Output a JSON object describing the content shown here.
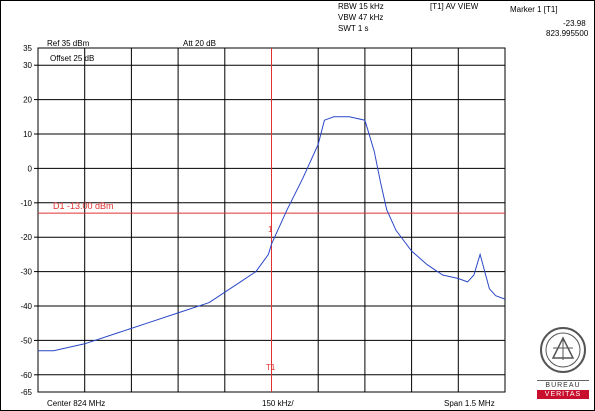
{
  "header": {
    "rbw": "RBW 15 kHz",
    "vbw": "VBW 47 kHz",
    "swt": "SWT 1 s",
    "trace_mode": "[T1] AV VIEW",
    "ref": "Ref 35 dBm",
    "att": "Att  20 dB",
    "offset": "Offset  25 dB"
  },
  "marker": {
    "title": "Marker 1 [T1]",
    "level": "-23.98",
    "freq": "823.995500",
    "label": "1",
    "bottom_label": "T1"
  },
  "display_line": {
    "label": "D1 -13.00 dBm",
    "value": -13
  },
  "footer": {
    "center": "Center 824 MHz",
    "div": "150 kHz/",
    "span": "Span 1.5 MHz"
  },
  "logo": {
    "top_text": "BUREAU",
    "bottom_text": "VERITAS",
    "year": "1828"
  },
  "colors": {
    "trace": "#2b47c8",
    "limit_line": "#e03030",
    "grid": "#000000"
  },
  "chart_data": {
    "type": "line",
    "title": "",
    "xlabel": "",
    "ylabel": "",
    "y_top_label": "35",
    "yticks": [
      30,
      20,
      10,
      0,
      -10,
      -20,
      -30,
      -40,
      -50,
      -60
    ],
    "y_bottom_label": "-65",
    "ylim": [
      -65,
      35
    ],
    "xlim_mhz": [
      823.25,
      824.75
    ],
    "series": [
      {
        "x_mhz": [
          823.25,
          823.3,
          823.4,
          823.5,
          823.6,
          823.7,
          823.8,
          823.85,
          823.9,
          823.95,
          823.99,
          824.0,
          824.05,
          824.1,
          824.15,
          824.17,
          824.2,
          824.25,
          824.3,
          824.33,
          824.35,
          824.37,
          824.4,
          824.45,
          824.5,
          824.55,
          824.6,
          824.63,
          824.65,
          824.67,
          824.7,
          824.72,
          824.75
        ],
        "y_dbm": [
          -53,
          -53,
          -51,
          -48,
          -45,
          -42,
          -39,
          -36,
          -33,
          -30,
          -25,
          -22,
          -12,
          -3,
          7,
          14,
          15,
          15,
          14,
          5,
          -4,
          -12,
          -18,
          -24,
          -28,
          -31,
          -32,
          -33,
          -31,
          -25,
          -35,
          -37,
          -38
        ]
      }
    ]
  }
}
